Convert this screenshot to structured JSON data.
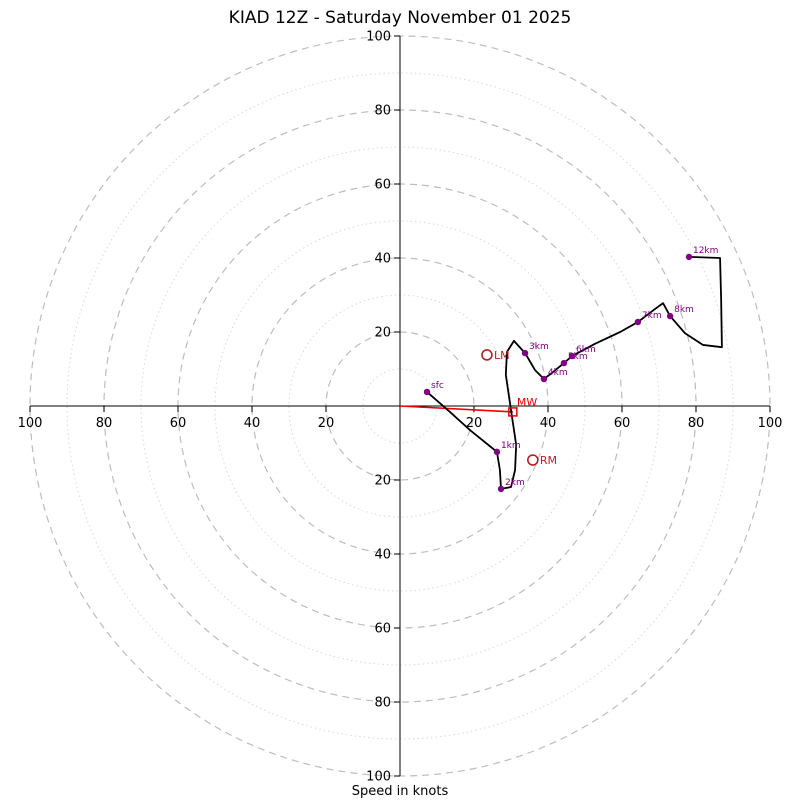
{
  "title": "KIAD 12Z - Saturday November 01 2025",
  "xlabel": "Speed in knots",
  "chart_data": {
    "type": "line",
    "subtype": "hodograph",
    "units": "knots",
    "title": "KIAD 12Z - Saturday November 01 2025",
    "axis_label": "Speed in knots",
    "axis_range": [
      -100,
      100
    ],
    "tick_values": [
      20,
      40,
      60,
      80,
      100
    ],
    "major_rings": [
      20,
      40,
      60,
      80,
      100
    ],
    "minor_rings": [
      10,
      30,
      50,
      70,
      90
    ],
    "trace_uv_knots": [
      [
        7.3,
        3.8
      ],
      [
        13.5,
        -1.6
      ],
      [
        18.9,
        -6.5
      ],
      [
        26.2,
        -12.4
      ],
      [
        27.0,
        -17.3
      ],
      [
        27.3,
        -22.4
      ],
      [
        30.0,
        -21.9
      ],
      [
        31.1,
        -17.3
      ],
      [
        31.4,
        -10.5
      ],
      [
        30.0,
        -1.1
      ],
      [
        28.6,
        8.4
      ],
      [
        28.9,
        14.6
      ],
      [
        30.8,
        17.6
      ],
      [
        33.8,
        14.3
      ],
      [
        36.5,
        9.7
      ],
      [
        38.9,
        7.3
      ],
      [
        41.4,
        9.2
      ],
      [
        44.3,
        11.6
      ],
      [
        46.5,
        13.5
      ],
      [
        52.7,
        16.8
      ],
      [
        59.5,
        20.0
      ],
      [
        64.3,
        22.7
      ],
      [
        68.9,
        26.2
      ],
      [
        71.1,
        27.8
      ],
      [
        73.0,
        24.3
      ],
      [
        77.0,
        19.7
      ],
      [
        81.9,
        16.5
      ],
      [
        87.0,
        15.9
      ],
      [
        86.8,
        28.6
      ],
      [
        86.5,
        40.0
      ],
      [
        78.1,
        40.3
      ]
    ],
    "height_markers": [
      {
        "label": "sfc",
        "trace_index": 0
      },
      {
        "label": "1km",
        "trace_index": 3
      },
      {
        "label": "2km",
        "trace_index": 5
      },
      {
        "label": "3km",
        "trace_index": 13
      },
      {
        "label": "4km",
        "trace_index": 15
      },
      {
        "label": "5km",
        "trace_index": 17
      },
      {
        "label": "6km",
        "trace_index": 18
      },
      {
        "label": "7km",
        "trace_index": 21
      },
      {
        "label": "8km",
        "trace_index": 24
      },
      {
        "label": "12km",
        "trace_index": 30
      }
    ],
    "storm_motion": [
      {
        "label": "LM",
        "u": 23.5,
        "v": 13.8
      },
      {
        "label": "RM",
        "u": 35.9,
        "v": -14.6
      }
    ],
    "mean_wind": {
      "label": "MW",
      "u": 30.5,
      "v": -1.6
    },
    "colors": {
      "trace": "#000000",
      "height_marker": "#800080",
      "storm_motion": "#b22222",
      "mean_wind": "#e80000",
      "grid_major": "#bdbdbd",
      "grid_minor": "#d9d9d9",
      "axis": "#000000"
    }
  }
}
